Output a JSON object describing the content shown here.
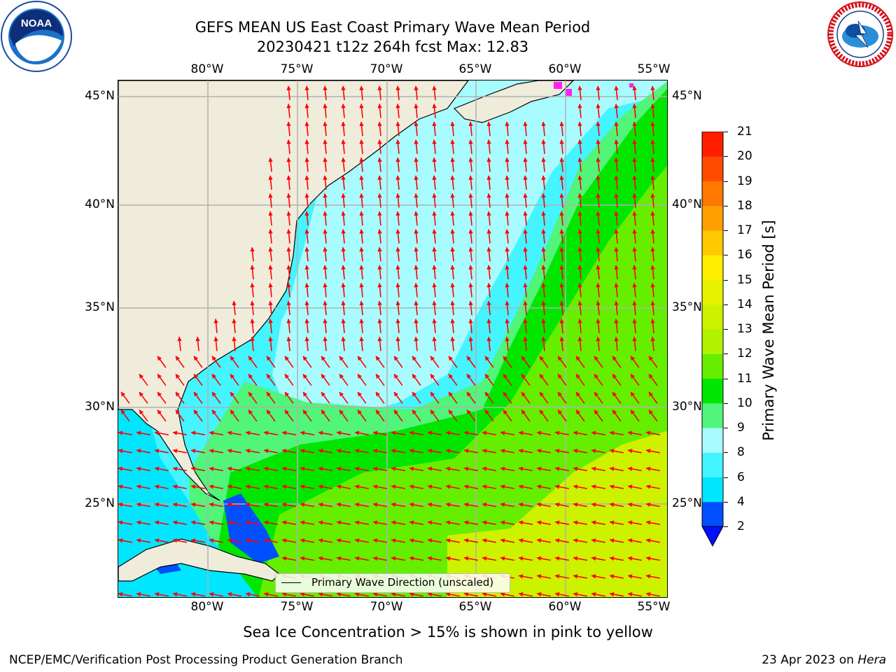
{
  "title": {
    "line1": "GEFS MEAN US East Coast Primary Wave Mean Period",
    "line2": "20230421 t12z 264h fcst   Max: 12.83"
  },
  "map": {
    "lon_labels": [
      "80°W",
      "75°W",
      "70°W",
      "65°W",
      "60°W",
      "55°W"
    ],
    "lat_labels": [
      "45°N",
      "40°N",
      "35°N",
      "30°N",
      "25°N"
    ],
    "land_color": "#efecdc",
    "grid_color": "#b0b0b0",
    "arrow_color": "#ff0000",
    "legend_label": "Primary Wave Direction (unscaled)"
  },
  "colorbar": {
    "label": "Primary Wave Mean Period [s]",
    "ticks": [
      "2",
      "4",
      "6",
      "8",
      "9",
      "10",
      "11",
      "12",
      "13",
      "14",
      "15",
      "16",
      "17",
      "18",
      "19",
      "20",
      "21"
    ],
    "colors": [
      "#0050ff",
      "#00e6ff",
      "#44f4ff",
      "#a8fcff",
      "#50f57a",
      "#00e600",
      "#66ee00",
      "#b2f200",
      "#ccf200",
      "#e6f200",
      "#ffee00",
      "#ffc800",
      "#ffa000",
      "#ff7800",
      "#ff4b00",
      "#ff1e00"
    ],
    "under_color": "#0010ff"
  },
  "notes": {
    "subtitle": "Sea Ice Concentration > 15% is shown in pink to yellow",
    "footer_left": "NCEP/EMC/Verification Post Processing Product Generation Branch",
    "footer_date": "23 Apr 2023 on ",
    "footer_host": "Hera"
  },
  "logos": {
    "noaa": "NOAA",
    "nws": "NATIONAL WEATHER SERVICE"
  }
}
